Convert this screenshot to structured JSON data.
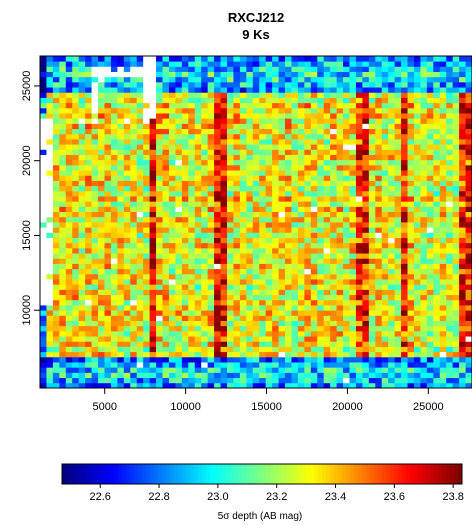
{
  "chart_data": {
    "type": "heatmap",
    "title": "RXCJ212",
    "subtitle": "9 Ks",
    "x_ticks": [
      5000,
      10000,
      15000,
      20000,
      25000
    ],
    "y_ticks": [
      10000,
      15000,
      20000,
      25000
    ],
    "xlim": [
      1000,
      27700
    ],
    "ylim": [
      4800,
      27000
    ],
    "grid_x": [
      1000,
      27700,
      67
    ],
    "grid_y": [
      4800,
      27000,
      64
    ],
    "colorbar": {
      "label": "5σ depth (AB mag)",
      "range": [
        22.47,
        23.83
      ],
      "ticks": [
        "22.6",
        "22.8",
        "23.0",
        "23.2",
        "23.4",
        "23.6",
        "23.8"
      ],
      "colormap": "jet"
    },
    "value_summary": {
      "typical": 23.3,
      "deep_columns_x": [
        8000,
        12200,
        21000,
        23500,
        27300
      ],
      "deep_column_value": 23.65,
      "shallow_bands_y": [
        [
          4800,
          6800
        ],
        [
          24500,
          27000
        ]
      ],
      "shallow_value": 22.8,
      "missing_regions": [
        {
          "x": [
            4000,
            4600
          ],
          "y": [
            22500,
            27000
          ]
        },
        {
          "x": [
            4600,
            7200
          ],
          "y": [
            25600,
            26400
          ]
        },
        {
          "x": [
            7300,
            8000
          ],
          "y": [
            22500,
            27000
          ]
        },
        {
          "x": [
            1000,
            1700
          ],
          "y": [
            10500,
            23000
          ]
        }
      ]
    }
  }
}
